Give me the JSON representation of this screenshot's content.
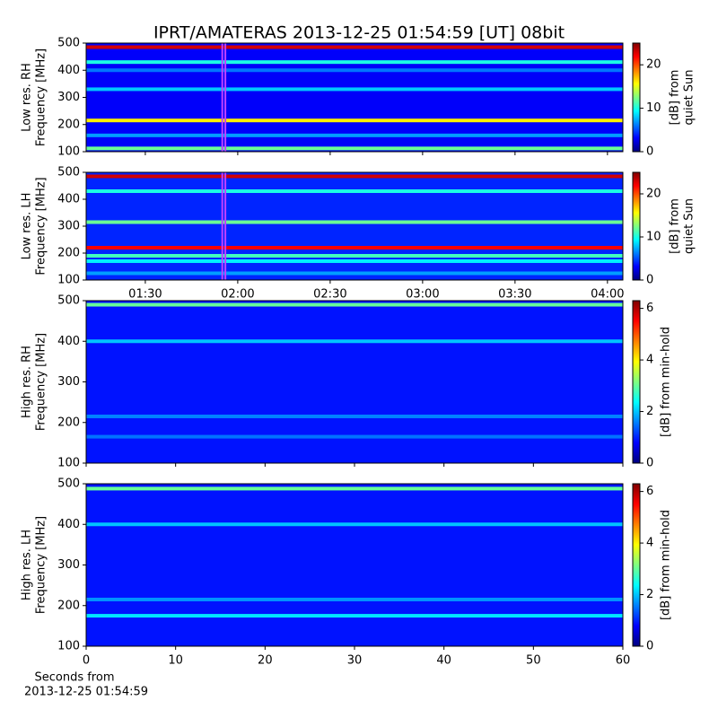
{
  "title": "IPRT/AMATERAS 2013-12-25 01:54:59 [UT]   08bit",
  "chart_data": [
    {
      "type": "heatmap",
      "ylabel": [
        "Low res. RH",
        "Frequency [MHz]"
      ],
      "ylim": [
        100,
        500
      ],
      "yticks": [
        100,
        200,
        300,
        400,
        500
      ],
      "xlim": [
        70.8,
        245
      ],
      "xticks": [
        {
          "value": 90,
          "label": "01:30"
        },
        {
          "value": 120,
          "label": "02:00"
        },
        {
          "value": 150,
          "label": "02:30"
        },
        {
          "value": 180,
          "label": "03:00"
        },
        {
          "value": 210,
          "label": "03:30"
        },
        {
          "value": 240,
          "label": "04:00"
        }
      ],
      "show_xticklabels": false,
      "marker_span": [
        114.98,
        115.98
      ],
      "marker_color": "#c040ff",
      "clabel": [
        "[dB] from",
        "quiet Sun"
      ],
      "clim": [
        0,
        25
      ],
      "cticks": [
        0,
        10,
        20
      ],
      "background": 3,
      "bands": [
        {
          "freq": 485,
          "value": 23
        },
        {
          "freq": 430,
          "value": 10
        },
        {
          "freq": 400,
          "value": 6
        },
        {
          "freq": 330,
          "value": 8
        },
        {
          "freq": 215,
          "value": 16
        },
        {
          "freq": 160,
          "value": 7
        },
        {
          "freq": 112,
          "value": 12
        }
      ]
    },
    {
      "type": "heatmap",
      "ylabel": [
        "Low res. LH",
        "Frequency [MHz]"
      ],
      "ylim": [
        100,
        500
      ],
      "yticks": [
        100,
        200,
        300,
        400,
        500
      ],
      "xlim": [
        70.8,
        245
      ],
      "xticks": [
        {
          "value": 90,
          "label": "01:30"
        },
        {
          "value": 120,
          "label": "02:00"
        },
        {
          "value": 150,
          "label": "02:30"
        },
        {
          "value": 180,
          "label": "03:00"
        },
        {
          "value": 210,
          "label": "03:30"
        },
        {
          "value": 240,
          "label": "04:00"
        }
      ],
      "show_xticklabels": true,
      "marker_span": [
        114.98,
        115.98
      ],
      "marker_color": "#c040ff",
      "clabel": [
        "[dB] from",
        "quiet Sun"
      ],
      "clim": [
        0,
        25
      ],
      "cticks": [
        0,
        10,
        20
      ],
      "background": 4,
      "bands": [
        {
          "freq": 485,
          "value": 23
        },
        {
          "freq": 430,
          "value": 10
        },
        {
          "freq": 315,
          "value": 12
        },
        {
          "freq": 220,
          "value": 22
        },
        {
          "freq": 190,
          "value": 11
        },
        {
          "freq": 170,
          "value": 9
        },
        {
          "freq": 125,
          "value": 7
        }
      ]
    },
    {
      "type": "heatmap",
      "ylabel": [
        "High res. RH",
        "Frequency [MHz]"
      ],
      "ylim": [
        100,
        500
      ],
      "yticks": [
        100,
        200,
        300,
        400,
        500
      ],
      "xlim": [
        0,
        60
      ],
      "xticks": [
        0,
        10,
        20,
        30,
        40,
        50,
        60
      ],
      "show_xticklabels": false,
      "clabel": [
        "[dB] from min-hold"
      ],
      "clim": [
        0,
        6.3
      ],
      "cticks": [
        0,
        2,
        4,
        6
      ],
      "background": 0.9,
      "bands": [
        {
          "freq": 490,
          "value": 3
        },
        {
          "freq": 400,
          "value": 2
        },
        {
          "freq": 215,
          "value": 1.6
        },
        {
          "freq": 165,
          "value": 1.5
        }
      ]
    },
    {
      "type": "heatmap",
      "ylabel": [
        "High res. LH",
        "Frequency [MHz]"
      ],
      "ylim": [
        100,
        500
      ],
      "yticks": [
        100,
        200,
        300,
        400,
        500
      ],
      "xlim": [
        0,
        60
      ],
      "xticks": [
        0,
        10,
        20,
        30,
        40,
        50,
        60
      ],
      "show_xticklabels": true,
      "clabel": [
        "[dB] from min-hold"
      ],
      "clim": [
        0,
        6.3
      ],
      "cticks": [
        0,
        2,
        4,
        6
      ],
      "background": 0.9,
      "bands": [
        {
          "freq": 488,
          "value": 3
        },
        {
          "freq": 400,
          "value": 2
        },
        {
          "freq": 215,
          "value": 1.7
        },
        {
          "freq": 175,
          "value": 2.2
        }
      ]
    }
  ],
  "xlabel": [
    "Seconds from",
    "2013-12-25 01:54:59"
  ]
}
